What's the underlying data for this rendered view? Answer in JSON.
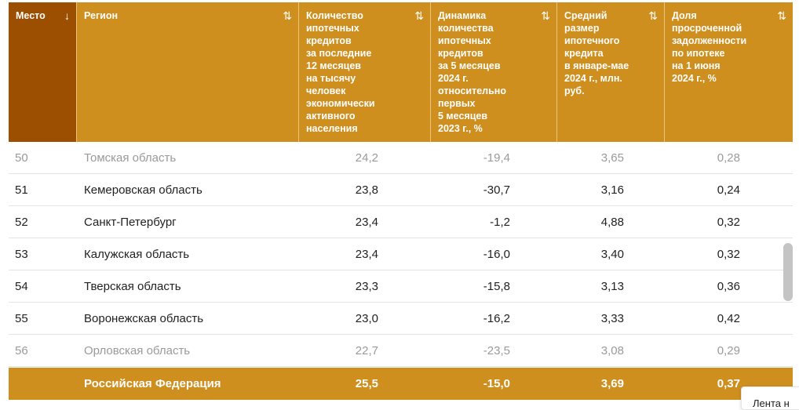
{
  "columns": [
    {
      "label": "Место",
      "sort": "↓"
    },
    {
      "label": "Регион",
      "sort": "⇅"
    },
    {
      "label": "Количество\nипотечных\nкредитов\nза последние\n12 месяцев\nна тысячу\nчеловек\nэкономически\nактивного\nнаселения",
      "sort": "⇅"
    },
    {
      "label": "Динамика\nколичества\nипотечных\nкредитов\nза 5 месяцев\n2024 г.\nотносительно\nпервых\n5 месяцев\n2023 г., %",
      "sort": "⇅"
    },
    {
      "label": "Средний\nразмер\nипотечного\nкредита\nв январе-мае\n2024 г., млн.\nруб.",
      "sort": "⇅"
    },
    {
      "label": "Доля\nпросроченной\nзадолженности\nпо ипотеке\nна 1 июня\n2024 г., %",
      "sort": "⇅"
    }
  ],
  "rows": [
    {
      "rank": "50",
      "region": "Томская область",
      "count": "24,2",
      "dynamics": "-19,4",
      "avg": "3,65",
      "overdue": "0,28",
      "faded": true
    },
    {
      "rank": "51",
      "region": "Кемеровская область",
      "count": "23,8",
      "dynamics": "-30,7",
      "avg": "3,16",
      "overdue": "0,24",
      "faded": false
    },
    {
      "rank": "52",
      "region": "Санкт-Петербург",
      "count": "23,4",
      "dynamics": "-1,2",
      "avg": "4,88",
      "overdue": "0,32",
      "faded": false
    },
    {
      "rank": "53",
      "region": "Калужская область",
      "count": "23,4",
      "dynamics": "-16,0",
      "avg": "3,40",
      "overdue": "0,32",
      "faded": false
    },
    {
      "rank": "54",
      "region": "Тверская область",
      "count": "23,3",
      "dynamics": "-15,8",
      "avg": "3,13",
      "overdue": "0,36",
      "faded": false
    },
    {
      "rank": "55",
      "region": "Воронежская область",
      "count": "23,0",
      "dynamics": "-16,2",
      "avg": "3,33",
      "overdue": "0,42",
      "faded": false
    },
    {
      "rank": "56",
      "region": "Орловская область",
      "count": "22,7",
      "dynamics": "-23,5",
      "avg": "3,08",
      "overdue": "0,29",
      "faded": true
    }
  ],
  "footer": {
    "rank": "",
    "region": "Российская Федерация",
    "count": "25,5",
    "dynamics": "-15,0",
    "avg": "3,69",
    "overdue": "0,37"
  },
  "tooltip": "Лента н",
  "colors": {
    "header": "#cf8f1f",
    "header_active": "#9c4f00",
    "text": "#222222",
    "faded_text": "#9a9a9a"
  }
}
